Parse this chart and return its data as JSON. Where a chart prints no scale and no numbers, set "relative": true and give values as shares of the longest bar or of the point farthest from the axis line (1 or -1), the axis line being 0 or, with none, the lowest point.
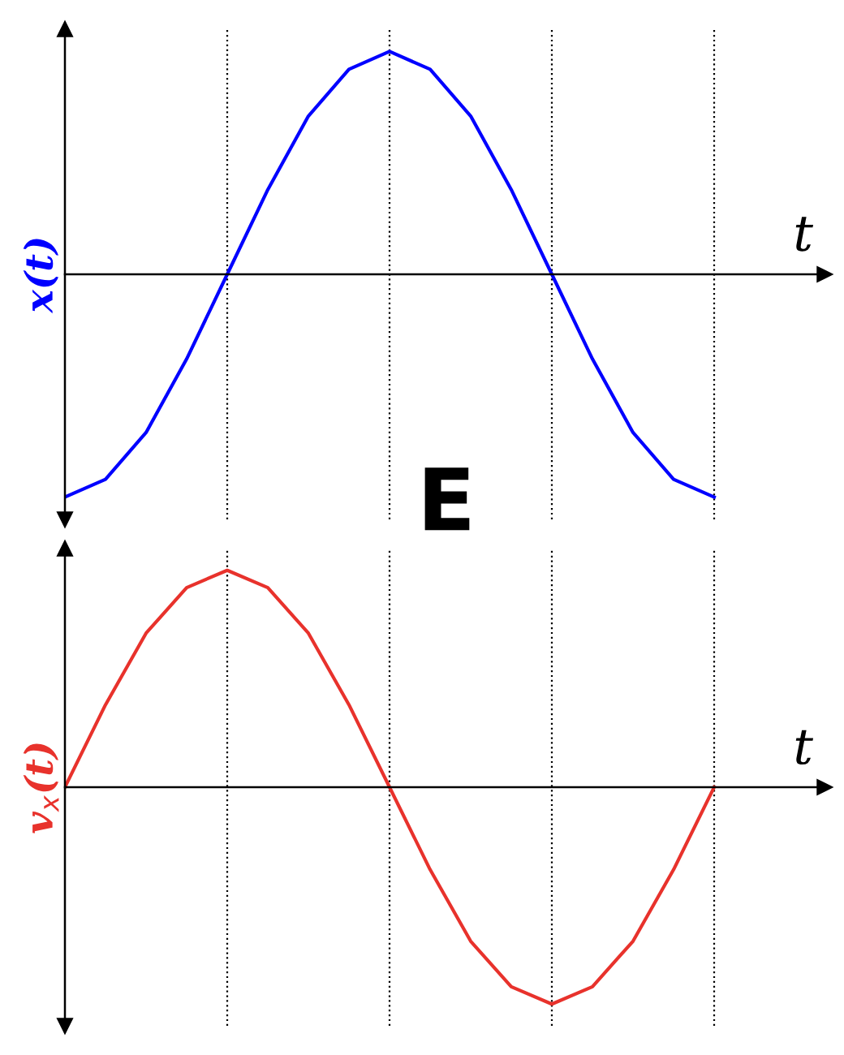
{
  "chart_data": [
    {
      "type": "line",
      "relative": true,
      "ylabel": "x(t)",
      "xlabel": "t",
      "legend": false,
      "grid": "x",
      "categories": [
        null,
        null,
        null,
        null,
        null,
        null,
        null,
        null,
        null,
        null,
        null,
        null,
        null,
        null,
        null,
        null,
        null
      ],
      "series": [
        {
          "color": "#0000ff",
          "values": [
            -1,
            -0.92,
            -0.71,
            -0.38,
            0,
            0.38,
            0.71,
            0.92,
            1,
            0.92,
            0.71,
            0.38,
            0,
            -0.38,
            -0.71,
            -0.92,
            -1
          ]
        }
      ],
      "annotations": [
        "E"
      ]
    },
    {
      "type": "line",
      "relative": true,
      "ylabel": "v$_{x}$(t)",
      "xlabel": "t",
      "legend": false,
      "grid": "x",
      "categories": [
        null,
        null,
        null,
        null,
        null,
        null,
        null,
        null,
        null,
        null,
        null,
        null,
        null,
        null,
        null,
        null,
        null
      ],
      "series": [
        {
          "color": "#e8322c",
          "values": [
            0,
            0.38,
            0.71,
            0.92,
            1,
            0.92,
            0.71,
            0.38,
            0,
            -0.38,
            -0.71,
            -0.92,
            -1,
            -0.92,
            -0.71,
            -0.38,
            0
          ]
        }
      ]
    }
  ]
}
